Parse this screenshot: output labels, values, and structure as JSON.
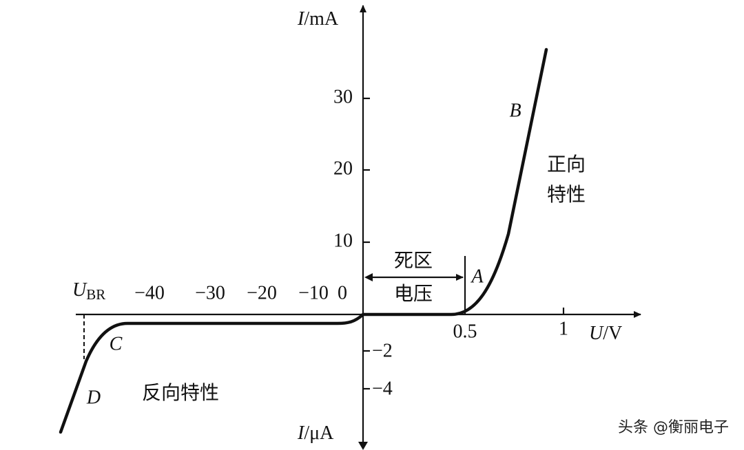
{
  "axes": {
    "y_top": {
      "symbol": "I",
      "unit": "/mA"
    },
    "y_bottom": {
      "symbol": "I",
      "unit": "/μA"
    },
    "x": {
      "symbol": "U",
      "unit": "/V"
    },
    "origin": "0",
    "y_top_ticks": [
      "10",
      "20",
      "30"
    ],
    "x_right_ticks": [
      "0.5",
      "1"
    ],
    "x_left_ticks": [
      "−10",
      "−20",
      "−30",
      "−40"
    ],
    "y_bottom_ticks": [
      "−2",
      "−4"
    ],
    "breakdown": {
      "symbol": "U",
      "subscript": "BR"
    }
  },
  "points": {
    "A": "A",
    "B": "B",
    "C": "C",
    "D": "D"
  },
  "annotations": {
    "forward": [
      "正向",
      "特性"
    ],
    "reverse": "反向特性",
    "dead_zone": [
      "死区",
      "电压"
    ]
  },
  "watermark": "头条 @衡丽电子"
}
